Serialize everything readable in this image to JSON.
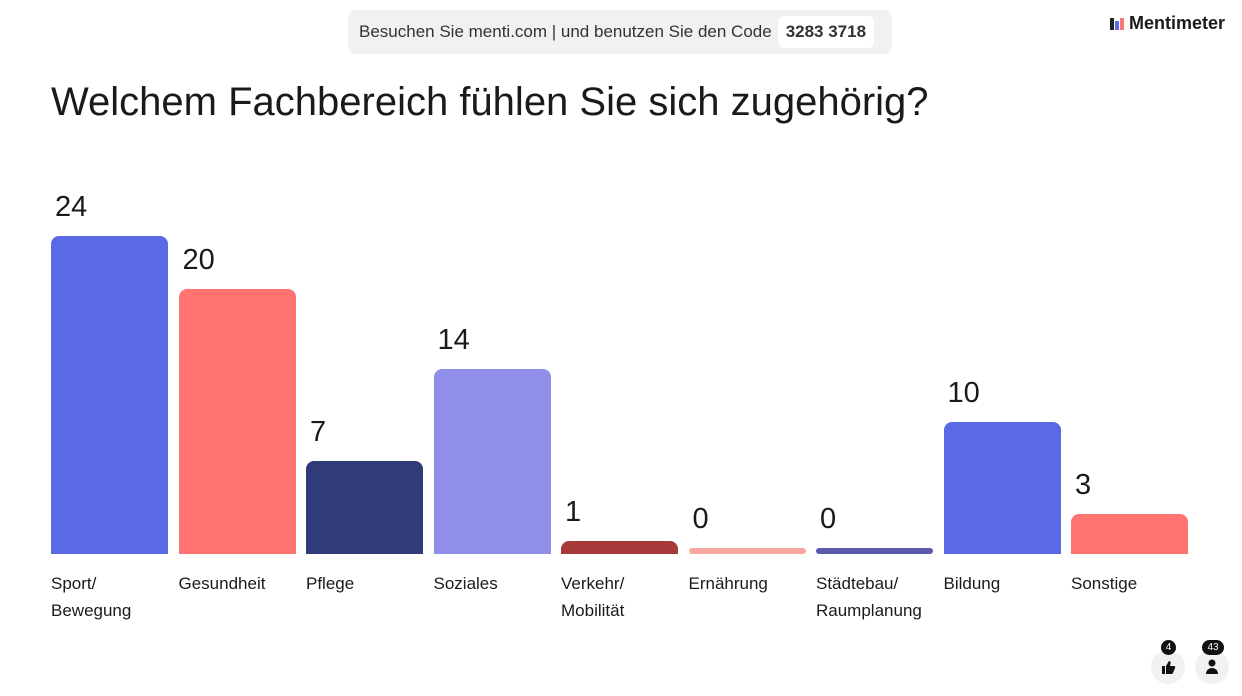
{
  "header": {
    "join_text": "Besuchen Sie menti.com | und benutzen Sie den Code",
    "code": "3283 3718",
    "brand": "Mentimeter"
  },
  "chart_data": {
    "type": "bar",
    "title": "Welchem Fachbereich fühlen Sie sich zugehörig?",
    "categories": [
      "Sport/ Bewegung",
      "Gesundheit",
      "Pflege",
      "Soziales",
      "Verkehr/ Mobilität",
      "Ernährung",
      "Städtebau/ Raumplanung",
      "Bildung",
      "Sonstige"
    ],
    "values": [
      24,
      20,
      7,
      14,
      1,
      0,
      0,
      10,
      3
    ],
    "colors": [
      "#5a6ae6",
      "#ff7470",
      "#323b7a",
      "#8f8ee8",
      "#a63a3a",
      "#f9a8a0",
      "#5b5aa8",
      "#5a6ae6",
      "#ff7470"
    ]
  },
  "footer": {
    "reactions": 4,
    "participants": 43
  }
}
